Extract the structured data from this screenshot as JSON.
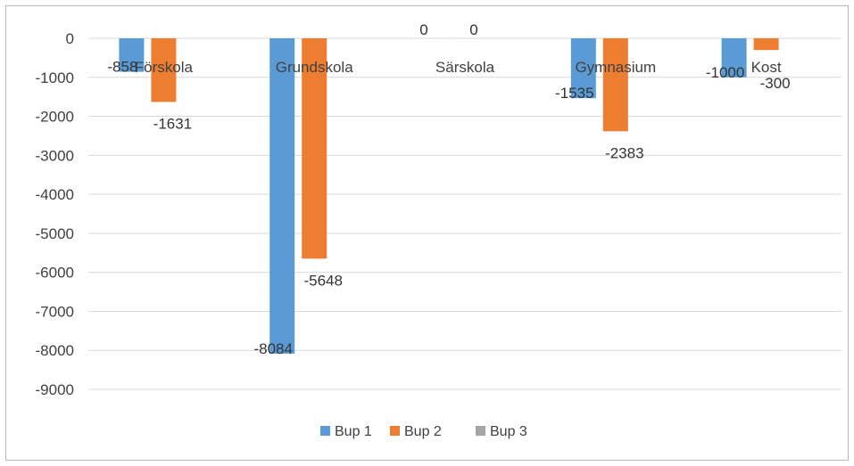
{
  "chart_data": {
    "type": "bar",
    "categories": [
      "Förskola",
      "Grundskola",
      "Särskola",
      "Gymnasium",
      "Kost"
    ],
    "series": [
      {
        "name": "Bup 1",
        "values": [
          -858,
          -8084,
          0,
          -1535,
          -1000
        ],
        "color": "#5b9bd5"
      },
      {
        "name": "Bup 2",
        "values": [
          -1631,
          -5648,
          0,
          -2383,
          -300
        ],
        "color": "#ed7d31"
      },
      {
        "name": "Bup 3",
        "values": [
          0,
          0,
          0,
          0,
          0
        ],
        "color": "#a5a5a5"
      }
    ],
    "data_labels": {
      "Bup 1": [
        "-858",
        "-8084",
        "0",
        "-1535",
        "-1000"
      ],
      "Bup 2": [
        "-1631",
        "-5648",
        "0",
        "-2383",
        "-300"
      ]
    },
    "y_ticks": [
      0,
      -1000,
      -2000,
      -3000,
      -4000,
      -5000,
      -6000,
      -7000,
      -8000,
      -9000
    ],
    "ylim": [
      -9000,
      0
    ],
    "grid": true,
    "legend_position": "bottom",
    "title": "",
    "xlabel": "",
    "ylabel": ""
  }
}
